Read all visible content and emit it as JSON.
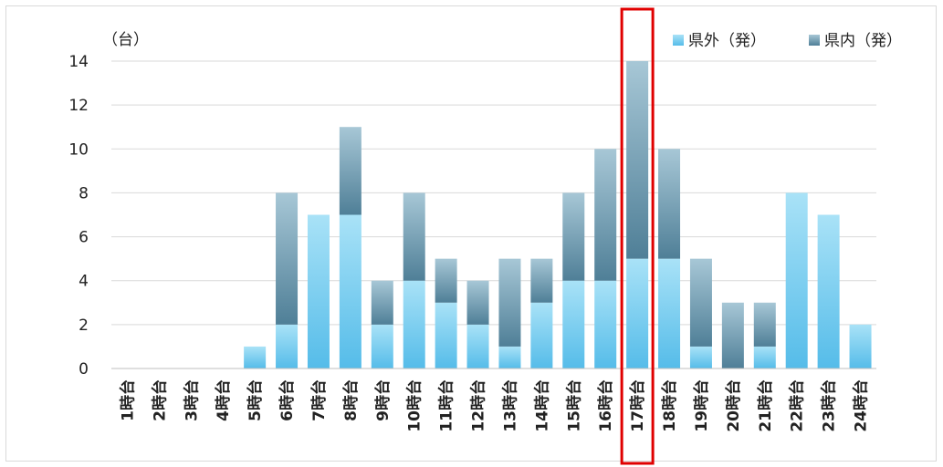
{
  "chart_data": {
    "type": "bar",
    "stacked": true,
    "unit_label": "（台）",
    "categories": [
      "1時台",
      "2時台",
      "3時台",
      "4時台",
      "5時台",
      "6時台",
      "7時台",
      "8時台",
      "9時台",
      "10時台",
      "11時台",
      "12時台",
      "13時台",
      "14時台",
      "15時台",
      "16時台",
      "17時台",
      "18時台",
      "19時台",
      "20時台",
      "21時台",
      "22時台",
      "23時台",
      "24時台"
    ],
    "series": [
      {
        "name": "県外（発）",
        "color": "#5bc0eb",
        "values": [
          0,
          0,
          0,
          0,
          1,
          2,
          7,
          7,
          2,
          4,
          3,
          2,
          1,
          3,
          4,
          4,
          5,
          5,
          1,
          0,
          1,
          8,
          7,
          2
        ]
      },
      {
        "name": "県内（発）",
        "color": "#4a7f99",
        "values": [
          0,
          0,
          0,
          0,
          0,
          6,
          0,
          4,
          2,
          4,
          2,
          2,
          4,
          2,
          4,
          6,
          9,
          5,
          4,
          3,
          2,
          0,
          0,
          0
        ]
      }
    ],
    "ylim": [
      0,
      14
    ],
    "yticks": [
      0,
      2,
      4,
      6,
      8,
      10,
      12,
      14
    ],
    "grid": true,
    "legend": "top-right",
    "highlight_category": "17時台",
    "highlight_color": "#e00000"
  }
}
